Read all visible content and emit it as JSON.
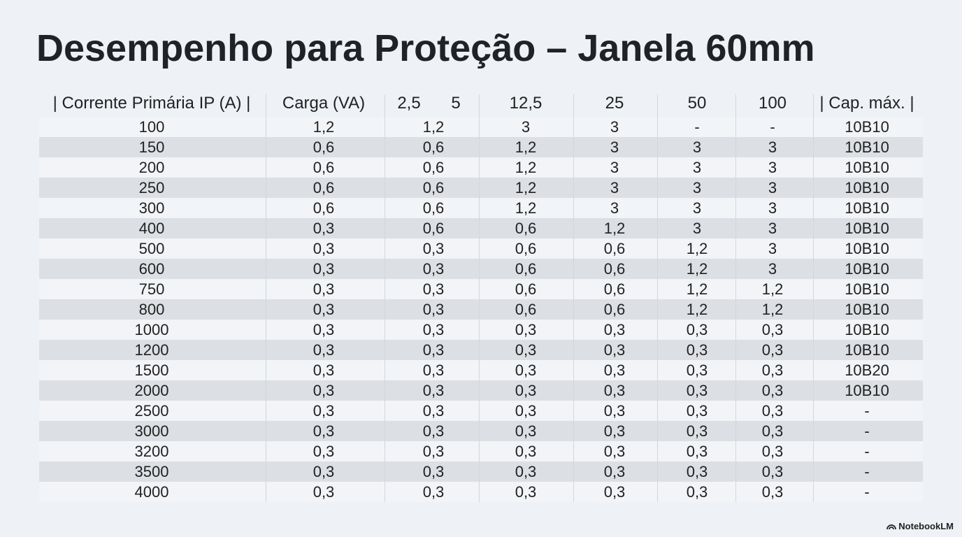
{
  "title": "Desempenho para Proteção – Janela 60mm",
  "table": {
    "header": [
      "| Corrente Primária IP (A) |",
      "Carga (VA)",
      "2,5",
      "5",
      "12,5",
      "25",
      "50",
      "100",
      "| Cap. máx. |"
    ],
    "rows": [
      [
        "100",
        "1,2",
        "1,2",
        "3",
        "3",
        "-",
        "-",
        "10B10"
      ],
      [
        "150",
        "0,6",
        "0,6",
        "1,2",
        "3",
        "3",
        "3",
        "10B10"
      ],
      [
        "200",
        "0,6",
        "0,6",
        "1,2",
        "3",
        "3",
        "3",
        "10B10"
      ],
      [
        "250",
        "0,6",
        "0,6",
        "1,2",
        "3",
        "3",
        "3",
        "10B10"
      ],
      [
        "300",
        "0,6",
        "0,6",
        "1,2",
        "3",
        "3",
        "3",
        "10B10"
      ],
      [
        "400",
        "0,3",
        "0,6",
        "0,6",
        "1,2",
        "3",
        "3",
        "10B10"
      ],
      [
        "500",
        "0,3",
        "0,3",
        "0,6",
        "0,6",
        "1,2",
        "3",
        "10B10"
      ],
      [
        "600",
        "0,3",
        "0,3",
        "0,6",
        "0,6",
        "1,2",
        "3",
        "10B10"
      ],
      [
        "750",
        "0,3",
        "0,3",
        "0,6",
        "0,6",
        "1,2",
        "1,2",
        "10B10"
      ],
      [
        "800",
        "0,3",
        "0,3",
        "0,6",
        "0,6",
        "1,2",
        "1,2",
        "10B10"
      ],
      [
        "1000",
        "0,3",
        "0,3",
        "0,3",
        "0,3",
        "0,3",
        "0,3",
        "10B10"
      ],
      [
        "1200",
        "0,3",
        "0,3",
        "0,3",
        "0,3",
        "0,3",
        "0,3",
        "10B10"
      ],
      [
        "1500",
        "0,3",
        "0,3",
        "0,3",
        "0,3",
        "0,3",
        "0,3",
        "10B20"
      ],
      [
        "2000",
        "0,3",
        "0,3",
        "0,3",
        "0,3",
        "0,3",
        "0,3",
        "10B10"
      ],
      [
        "2500",
        "0,3",
        "0,3",
        "0,3",
        "0,3",
        "0,3",
        "0,3",
        "-"
      ],
      [
        "3000",
        "0,3",
        "0,3",
        "0,3",
        "0,3",
        "0,3",
        "0,3",
        "-"
      ],
      [
        "3200",
        "0,3",
        "0,3",
        "0,3",
        "0,3",
        "0,3",
        "0,3",
        "-"
      ],
      [
        "3500",
        "0,3",
        "0,3",
        "0,3",
        "0,3",
        "0,3",
        "0,3",
        "-"
      ],
      [
        "4000",
        "0,3",
        "0,3",
        "0,3",
        "0,3",
        "0,3",
        "0,3",
        "-"
      ]
    ]
  },
  "footer": {
    "brand": "NotebookLM"
  }
}
